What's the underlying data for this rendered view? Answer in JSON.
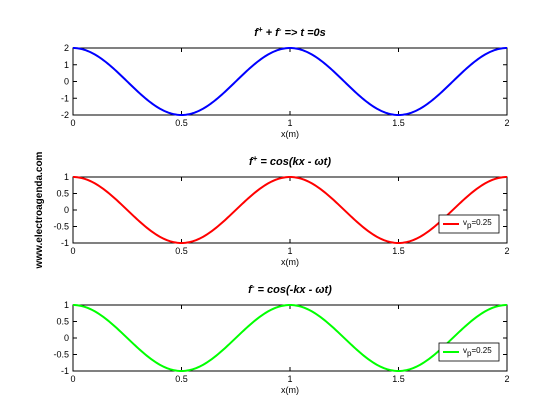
{
  "watermark": "www.electroagenda.com",
  "chart_data": [
    {
      "type": "line",
      "title": {
        "a": "f",
        "a_sup": "+",
        "mid": " + ",
        "b": "f",
        "b_sup": "-",
        "end": " => t =0s"
      },
      "xlabel": "x(m)",
      "ylabel": "",
      "xlim": [
        0,
        2
      ],
      "ylim": [
        -2,
        2
      ],
      "xticks": [
        "0",
        "0.5",
        "1",
        "1.5",
        "2"
      ],
      "yticks": [
        "2",
        "1",
        "0",
        "-1",
        "-2"
      ],
      "grid": false,
      "legend": null,
      "series": [
        {
          "color": "#0000ff",
          "amplitude": 2,
          "x": [
            0,
            0.25,
            0.5,
            0.75,
            1,
            1.25,
            1.5,
            1.75,
            2
          ],
          "y": [
            2,
            0,
            -2,
            0,
            2,
            0,
            -2,
            0,
            2
          ]
        }
      ]
    },
    {
      "type": "line",
      "title": {
        "a": "f",
        "a_sup": "+",
        "mid": "",
        "b": "",
        "b_sup": "",
        "end": " = cos(kx - ωt)"
      },
      "xlabel": "x(m)",
      "ylabel": "",
      "xlim": [
        0,
        2
      ],
      "ylim": [
        -1,
        1
      ],
      "xticks": [
        "0",
        "0.5",
        "1",
        "1.5",
        "2"
      ],
      "yticks": [
        "1",
        "0.5",
        "0",
        "-0.5",
        "-1"
      ],
      "grid": false,
      "legend": {
        "placement": "bottom-right",
        "label_main": "v",
        "label_sub": "p",
        "label_end": "=0.25"
      },
      "series": [
        {
          "color": "#ff0000",
          "amplitude": 1,
          "x": [
            0,
            0.25,
            0.5,
            0.75,
            1,
            1.25,
            1.5,
            1.75,
            2
          ],
          "y": [
            1,
            0,
            -1,
            0,
            1,
            0,
            -1,
            0,
            1
          ]
        }
      ]
    },
    {
      "type": "line",
      "title": {
        "a": "f",
        "a_sup": "-",
        "mid": "",
        "b": "",
        "b_sup": "",
        "end": " = cos(-kx - ωt)"
      },
      "xlabel": "x(m)",
      "ylabel": "",
      "xlim": [
        0,
        2
      ],
      "ylim": [
        -1,
        1
      ],
      "xticks": [
        "0",
        "0.5",
        "1",
        "1.5",
        "2"
      ],
      "yticks": [
        "1",
        "0.5",
        "0",
        "-0.5",
        "-1"
      ],
      "grid": false,
      "legend": {
        "placement": "bottom-right",
        "label_main": "v",
        "label_sub": "p",
        "label_end": "=0.25"
      },
      "series": [
        {
          "color": "#00ff00",
          "amplitude": 1,
          "x": [
            0,
            0.25,
            0.5,
            0.75,
            1,
            1.25,
            1.5,
            1.75,
            2
          ],
          "y": [
            1,
            0,
            -1,
            0,
            1,
            0,
            -1,
            0,
            1
          ]
        }
      ]
    }
  ]
}
